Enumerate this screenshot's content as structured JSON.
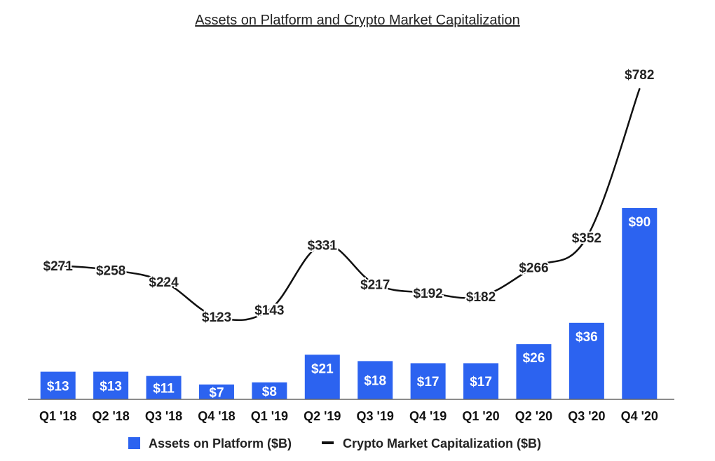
{
  "chart_data": {
    "type": "bar+line",
    "title": "Assets on Platform and Crypto Market Capitalization",
    "categories": [
      "Q1 '18",
      "Q2 '18",
      "Q3 '18",
      "Q4 '18",
      "Q1 '19",
      "Q2 '19",
      "Q3 '19",
      "Q4 '19",
      "Q1 '20",
      "Q2 '20",
      "Q3 '20",
      "Q4 '20"
    ],
    "series": [
      {
        "name": "Assets on Platform ($B)",
        "kind": "bar",
        "color": "#2c63f0",
        "values": [
          13,
          13,
          11,
          7,
          8,
          21,
          18,
          17,
          17,
          26,
          36,
          90
        ],
        "labels": [
          "$13",
          "$13",
          "$11",
          "$7",
          "$8",
          "$21",
          "$18",
          "$17",
          "$17",
          "$26",
          "$36",
          "$90"
        ]
      },
      {
        "name": "Crypto Market Capitalization ($B)",
        "kind": "line",
        "color": "#111111",
        "values": [
          271,
          258,
          224,
          123,
          143,
          331,
          217,
          192,
          182,
          266,
          352,
          782
        ],
        "labels": [
          "$271",
          "$258",
          "$224",
          "$123",
          "$143",
          "$331",
          "$217",
          "$192",
          "$182",
          "$266",
          "$352",
          "$782"
        ]
      }
    ],
    "legend_position": "bottom",
    "grid": false
  }
}
